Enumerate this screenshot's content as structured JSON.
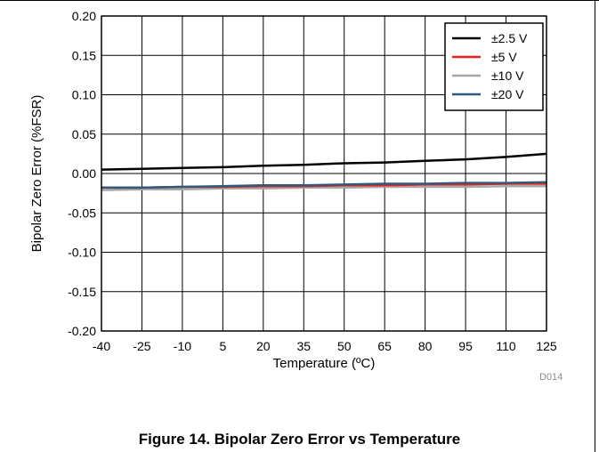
{
  "chart_data": {
    "type": "line",
    "xlabel": "Temperature (ºC)",
    "ylabel": "Bipolar Zero Error (%FSR)",
    "xlim": [
      -40,
      125
    ],
    "ylim": [
      -0.2,
      0.2
    ],
    "x_ticks": [
      "-40",
      "-25",
      "-10",
      "5",
      "20",
      "35",
      "50",
      "65",
      "80",
      "95",
      "110",
      "125"
    ],
    "y_ticks": [
      "0.20",
      "0.15",
      "0.10",
      "0.05",
      "0.00",
      "-0.05",
      "-0.10",
      "-0.15",
      "-0.20"
    ],
    "grid": true,
    "legend_position": "top-right",
    "x": [
      -40,
      -25,
      -10,
      5,
      20,
      35,
      50,
      65,
      80,
      95,
      110,
      125
    ],
    "series": [
      {
        "name": "±2.5 V",
        "color": "#000000",
        "values": [
          0.005,
          0.006,
          0.007,
          0.008,
          0.01,
          0.011,
          0.013,
          0.014,
          0.016,
          0.018,
          0.021,
          0.025
        ]
      },
      {
        "name": "±5 V",
        "color": "#e8211c",
        "values": [
          -0.018,
          -0.018,
          -0.017,
          -0.017,
          -0.016,
          -0.016,
          -0.015,
          -0.015,
          -0.014,
          -0.014,
          -0.013,
          -0.013
        ]
      },
      {
        "name": "±10 V",
        "color": "#a8a8a8",
        "values": [
          -0.021,
          -0.02,
          -0.02,
          -0.019,
          -0.019,
          -0.018,
          -0.018,
          -0.017,
          -0.017,
          -0.017,
          -0.016,
          -0.016
        ]
      },
      {
        "name": "±20 V",
        "color": "#2e5a7c",
        "values": [
          -0.018,
          -0.018,
          -0.017,
          -0.016,
          -0.015,
          -0.015,
          -0.014,
          -0.013,
          -0.013,
          -0.012,
          -0.012,
          -0.011
        ]
      }
    ]
  },
  "figure": {
    "caption": "Figure 14. Bipolar Zero Error vs Temperature",
    "code": "D014"
  }
}
